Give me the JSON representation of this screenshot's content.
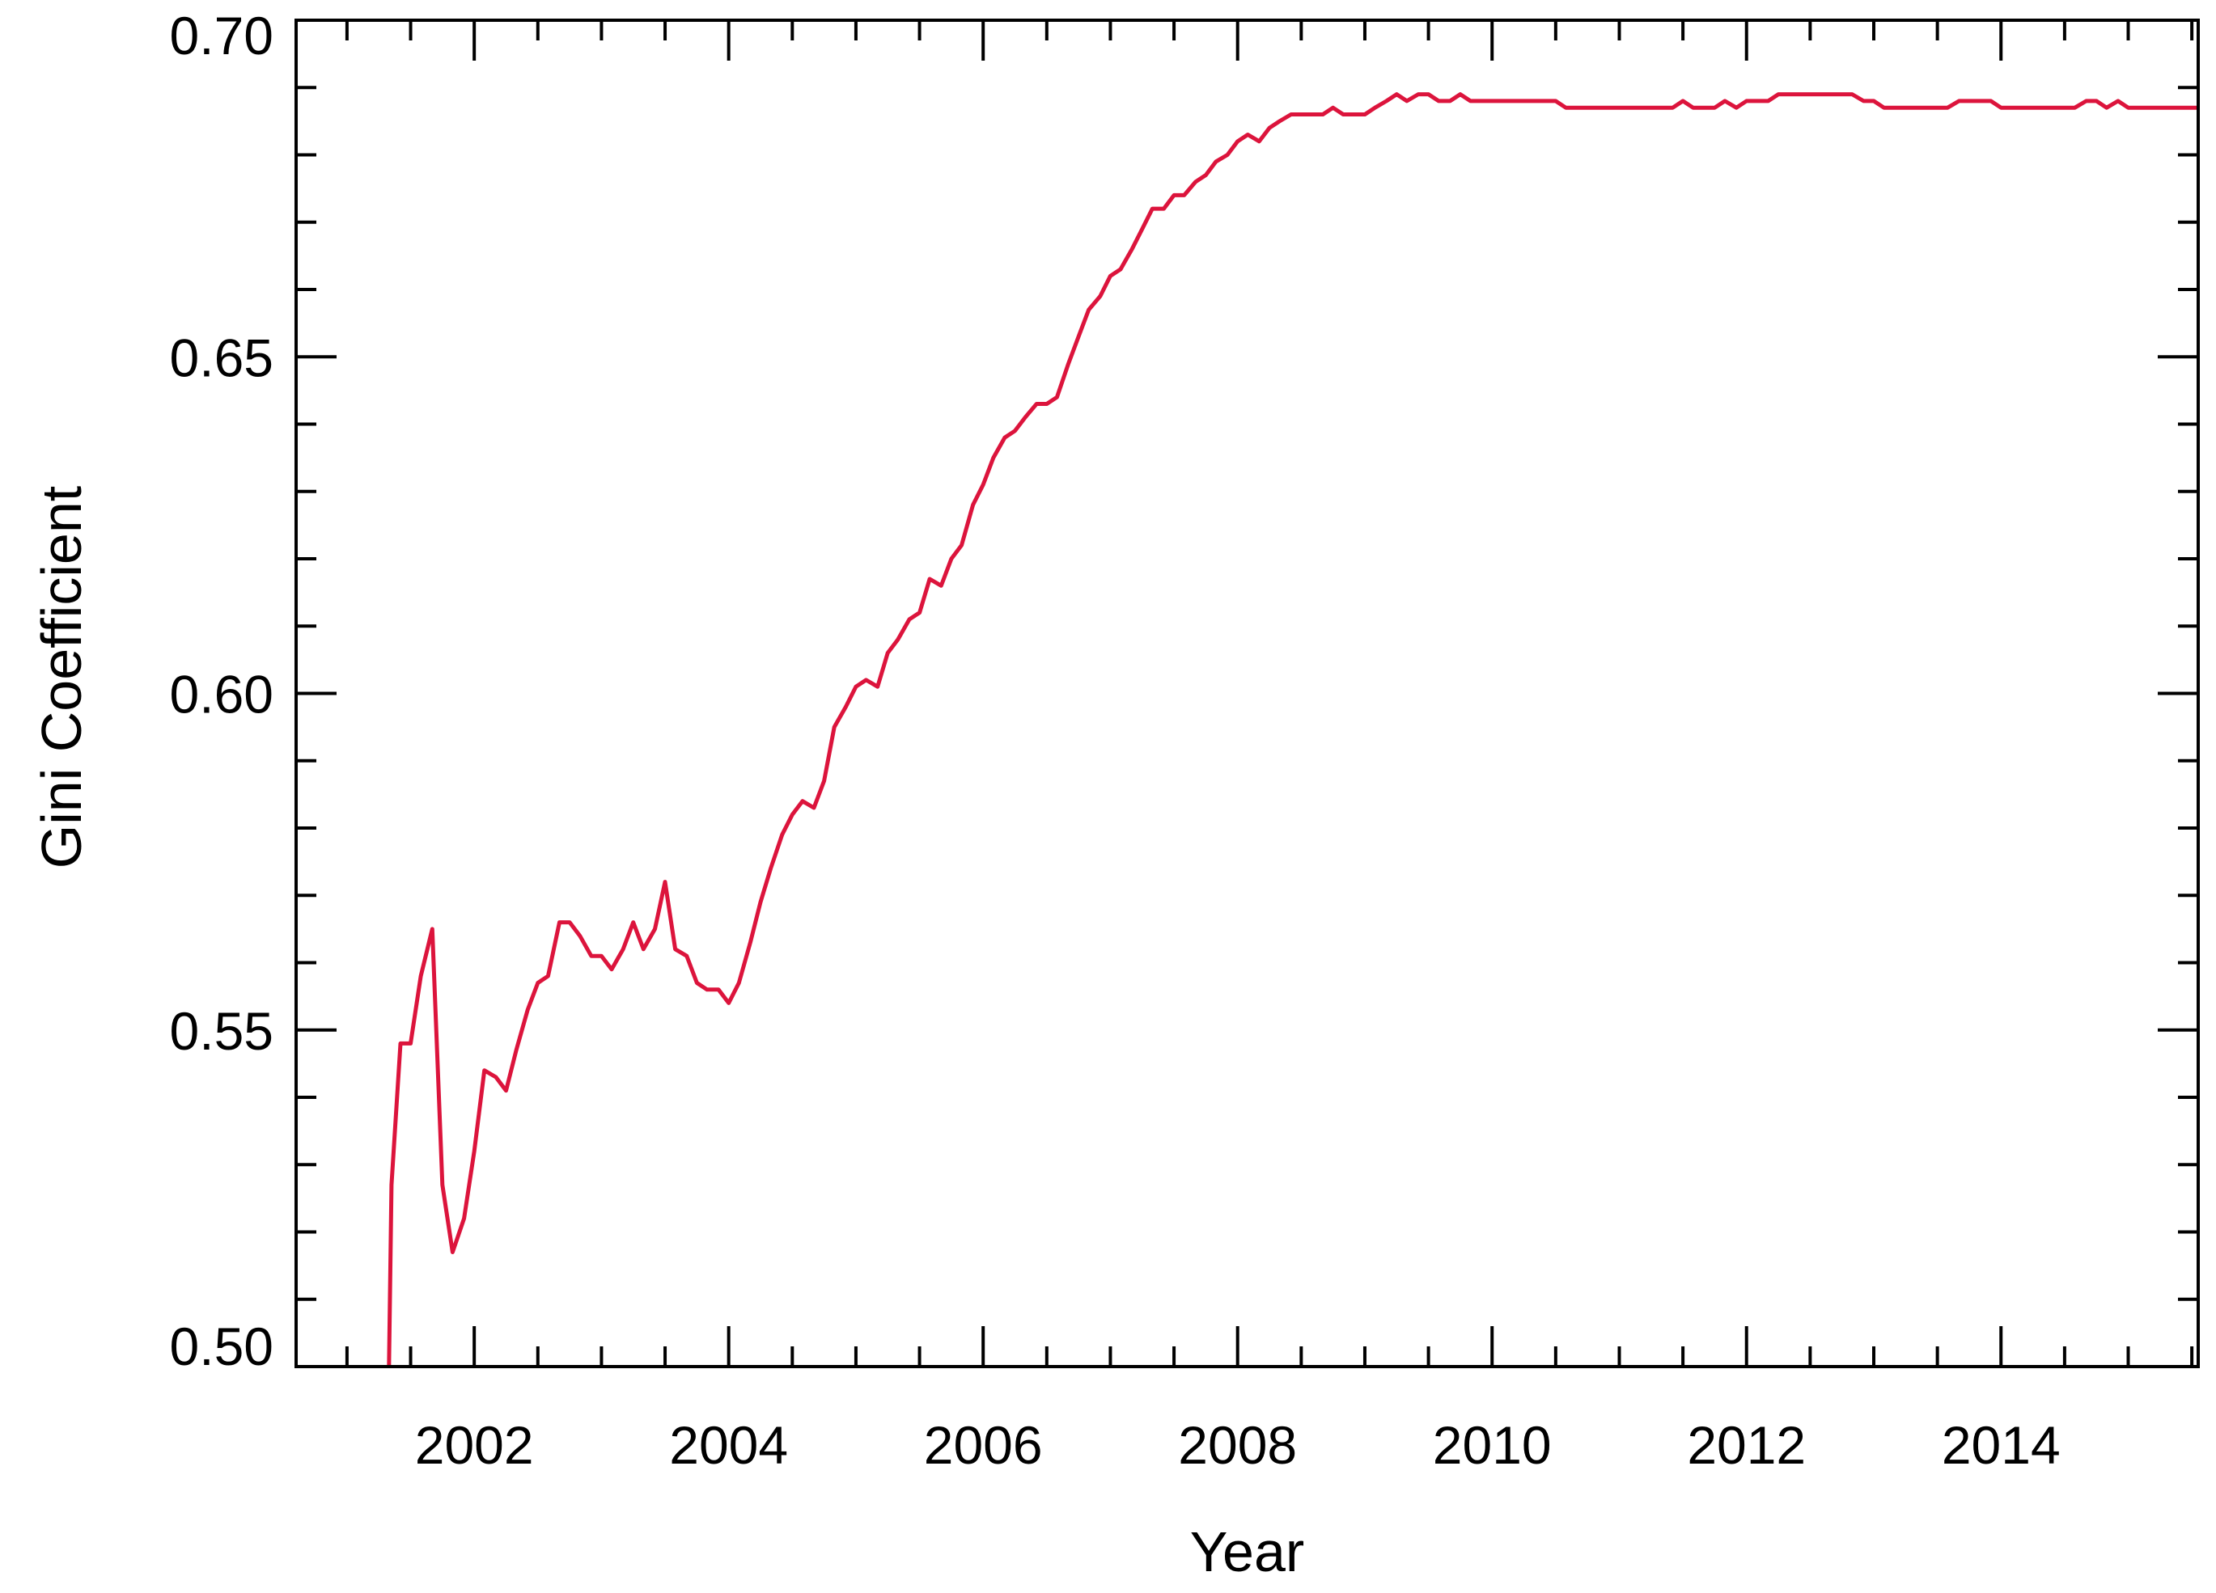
{
  "chart_data": {
    "type": "line",
    "title": "",
    "xlabel": "Year",
    "ylabel": "Gini Coefficient",
    "xlim": [
      2000.6,
      2015.55
    ],
    "ylim": [
      0.5,
      0.7
    ],
    "grid": false,
    "line_color": "#dc143c",
    "x_ticks": [
      2002,
      2004,
      2006,
      2008,
      2010,
      2012,
      2014
    ],
    "x_tick_labels": [
      "2002",
      "2004",
      "2006",
      "2008",
      "2010",
      "2012",
      "2014"
    ],
    "y_ticks": [
      0.5,
      0.55,
      0.6,
      0.65,
      0.7
    ],
    "y_tick_labels": [
      "0.50",
      "0.55",
      "0.60",
      "0.65",
      "0.70"
    ],
    "series": [
      {
        "x": [
          2001.33,
          2001.35,
          2001.42,
          2001.5,
          2001.58,
          2001.67,
          2001.75,
          2001.83,
          2001.92,
          2002.0,
          2002.08,
          2002.17,
          2002.25,
          2002.33,
          2002.42,
          2002.5,
          2002.58,
          2002.67,
          2002.75,
          2002.83,
          2002.92,
          2003.0,
          2003.08,
          2003.17,
          2003.25,
          2003.33,
          2003.42,
          2003.5,
          2003.58,
          2003.67,
          2003.75,
          2003.83,
          2003.92,
          2004.0,
          2004.08,
          2004.17,
          2004.25,
          2004.33,
          2004.42,
          2004.5,
          2004.58,
          2004.67,
          2004.75,
          2004.83,
          2004.92,
          2005.0,
          2005.08,
          2005.17,
          2005.25,
          2005.33,
          2005.42,
          2005.5,
          2005.58,
          2005.67,
          2005.75,
          2005.83,
          2005.92,
          2006.0,
          2006.08,
          2006.17,
          2006.25,
          2006.33,
          2006.42,
          2006.5,
          2006.58,
          2006.67,
          2006.75,
          2006.83,
          2006.92,
          2007.0,
          2007.08,
          2007.17,
          2007.25,
          2007.33,
          2007.42,
          2007.5,
          2007.58,
          2007.67,
          2007.75,
          2007.83,
          2007.92,
          2008.0,
          2008.08,
          2008.17,
          2008.25,
          2008.33,
          2008.42,
          2008.5,
          2008.58,
          2008.67,
          2008.75,
          2008.83,
          2008.92,
          2009.0,
          2009.08,
          2009.17,
          2009.25,
          2009.33,
          2009.42,
          2009.5,
          2009.58,
          2009.67,
          2009.75,
          2009.83,
          2009.92,
          2010.0,
          2010.08,
          2010.17,
          2010.25,
          2010.33,
          2010.42,
          2010.5,
          2010.58,
          2010.67,
          2010.75,
          2010.83,
          2010.92,
          2011.0,
          2011.08,
          2011.17,
          2011.25,
          2011.33,
          2011.42,
          2011.5,
          2011.58,
          2011.67,
          2011.75,
          2011.83,
          2011.92,
          2012.0,
          2012.08,
          2012.17,
          2012.25,
          2012.33,
          2012.42,
          2012.5,
          2012.58,
          2012.67,
          2012.75,
          2012.83,
          2012.92,
          2013.0,
          2013.08,
          2013.17,
          2013.25,
          2013.33,
          2013.42,
          2013.5,
          2013.58,
          2013.67,
          2013.75,
          2013.83,
          2013.92,
          2014.0,
          2014.08,
          2014.17,
          2014.25,
          2014.33,
          2014.42,
          2014.5,
          2014.58,
          2014.67,
          2014.75,
          2014.83,
          2014.92,
          2015.0,
          2015.08,
          2015.17,
          2015.25,
          2015.33,
          2015.42,
          2015.5,
          2015.55
        ],
        "y": [
          0.5,
          0.527,
          0.548,
          0.548,
          0.558,
          0.565,
          0.527,
          0.517,
          0.522,
          0.532,
          0.544,
          0.543,
          0.541,
          0.547,
          0.553,
          0.557,
          0.558,
          0.566,
          0.566,
          0.564,
          0.561,
          0.561,
          0.559,
          0.562,
          0.566,
          0.562,
          0.565,
          0.572,
          0.562,
          0.561,
          0.557,
          0.556,
          0.556,
          0.554,
          0.557,
          0.563,
          0.569,
          0.574,
          0.579,
          0.582,
          0.584,
          0.583,
          0.587,
          0.595,
          0.598,
          0.601,
          0.602,
          0.601,
          0.606,
          0.608,
          0.611,
          0.612,
          0.617,
          0.616,
          0.62,
          0.622,
          0.628,
          0.631,
          0.635,
          0.638,
          0.639,
          0.641,
          0.643,
          0.643,
          0.644,
          0.649,
          0.653,
          0.657,
          0.659,
          0.662,
          0.663,
          0.666,
          0.669,
          0.672,
          0.672,
          0.674,
          0.674,
          0.676,
          0.677,
          0.679,
          0.68,
          0.682,
          0.683,
          0.682,
          0.684,
          0.685,
          0.686,
          0.686,
          0.686,
          0.686,
          0.687,
          0.686,
          0.686,
          0.686,
          0.687,
          0.688,
          0.689,
          0.688,
          0.689,
          0.689,
          0.688,
          0.688,
          0.689,
          0.688,
          0.688,
          0.688,
          0.688,
          0.688,
          0.688,
          0.688,
          0.688,
          0.688,
          0.687,
          0.687,
          0.687,
          0.687,
          0.687,
          0.687,
          0.687,
          0.687,
          0.687,
          0.687,
          0.687,
          0.688,
          0.687,
          0.687,
          0.687,
          0.688,
          0.687,
          0.688,
          0.688,
          0.688,
          0.689,
          0.689,
          0.689,
          0.689,
          0.689,
          0.689,
          0.689,
          0.689,
          0.688,
          0.688,
          0.687,
          0.687,
          0.687,
          0.687,
          0.687,
          0.687,
          0.687,
          0.688,
          0.688,
          0.688,
          0.688,
          0.687,
          0.687,
          0.687,
          0.687,
          0.687,
          0.687,
          0.687,
          0.687,
          0.688,
          0.688,
          0.687,
          0.688,
          0.687,
          0.687,
          0.687,
          0.687,
          0.687,
          0.687,
          0.687,
          0.687
        ]
      }
    ]
  }
}
